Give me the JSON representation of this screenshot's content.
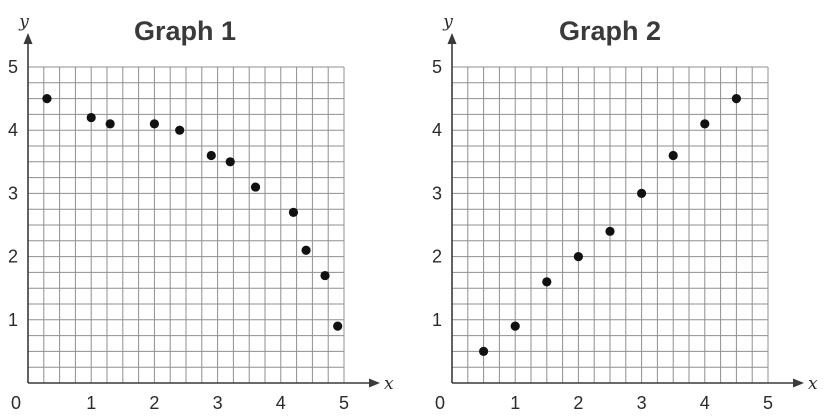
{
  "chart_data": [
    {
      "type": "scatter",
      "title": "Graph 1",
      "xlabel": "x",
      "ylabel": "y",
      "origin_label": "0",
      "xlim": [
        0,
        5
      ],
      "ylim": [
        0,
        5
      ],
      "grid": true,
      "grid_step": 0.25,
      "x_ticks": [
        "1",
        "2",
        "3",
        "4",
        "5"
      ],
      "y_ticks": [
        "1",
        "2",
        "3",
        "4",
        "5"
      ],
      "x": [
        0.3,
        1.0,
        1.3,
        2.0,
        2.4,
        2.9,
        3.2,
        3.6,
        4.2,
        4.4,
        4.7,
        4.9
      ],
      "y": [
        4.5,
        4.2,
        4.1,
        4.1,
        4.0,
        3.6,
        3.5,
        3.1,
        2.7,
        2.1,
        1.7,
        0.9
      ]
    },
    {
      "type": "scatter",
      "title": "Graph 2",
      "xlabel": "x",
      "ylabel": "y",
      "origin_label": "0",
      "xlim": [
        0,
        5
      ],
      "ylim": [
        0,
        5
      ],
      "grid": true,
      "grid_step": 0.25,
      "x_ticks": [
        "1",
        "2",
        "3",
        "4",
        "5"
      ],
      "y_ticks": [
        "1",
        "2",
        "3",
        "4",
        "5"
      ],
      "x": [
        0.5,
        1.0,
        1.5,
        2.0,
        2.5,
        3.0,
        3.5,
        4.0,
        4.5
      ],
      "y": [
        0.5,
        0.9,
        1.6,
        2.0,
        2.4,
        3.0,
        3.6,
        4.1,
        4.5
      ]
    }
  ],
  "colors": {
    "grid": "#8f8f8f",
    "axis": "#3a3a3a",
    "point": "#111111"
  }
}
